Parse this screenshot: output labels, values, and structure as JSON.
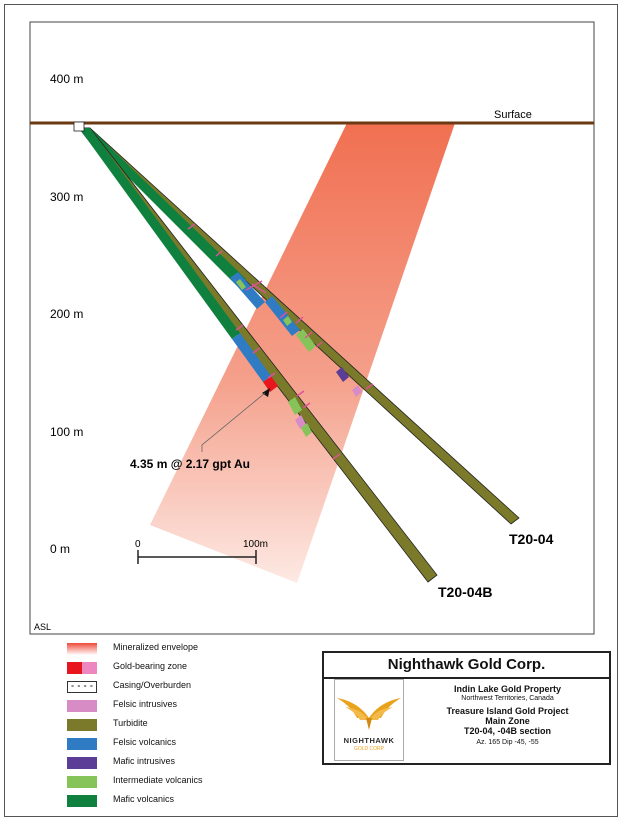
{
  "axis": {
    "ticks": [
      "400 m",
      "300 m",
      "200 m",
      "100 m",
      "0 m"
    ],
    "datum": "ASL"
  },
  "surface_label": "Surface",
  "scale_bar": {
    "start": "0",
    "end": "100m"
  },
  "annotation": "4.35 m @ 2.17 gpt Au",
  "holes": [
    {
      "name": "T20-04",
      "dip": -45
    },
    {
      "name": "T20-04B",
      "dip": -55
    }
  ],
  "legend": [
    {
      "label": "Mineralized envelope",
      "color": "#f0705a"
    },
    {
      "label": "Gold-bearing zone",
      "color": "#e8161c",
      "color2": "#ee87c0"
    },
    {
      "label": "Casing/Overburden",
      "color": "#ffffff"
    },
    {
      "label": "Felsic intrusives",
      "color": "#d88cc6"
    },
    {
      "label": "Turbidite",
      "color": "#7a7a2a"
    },
    {
      "label": "Felsic volcanics",
      "color": "#2f7bc4"
    },
    {
      "label": "Mafic intrusives",
      "color": "#5b3c96"
    },
    {
      "label": "Intermediate volcanics",
      "color": "#86c45a"
    },
    {
      "label": "Mafic volcanics",
      "color": "#10803e"
    }
  ],
  "title_block": {
    "company": "Nighthawk Gold Corp.",
    "logo_name": "NIGHTHAWK",
    "logo_sub": "GOLD CORP",
    "property": "Indin Lake Gold Property",
    "location": "Northwest Territories, Canada",
    "project": "Treasure Island Gold Project",
    "zone": "Main Zone",
    "section": "T20-04, -04B section",
    "azimuth_dip": "Az. 165  Dip -45, -55"
  }
}
